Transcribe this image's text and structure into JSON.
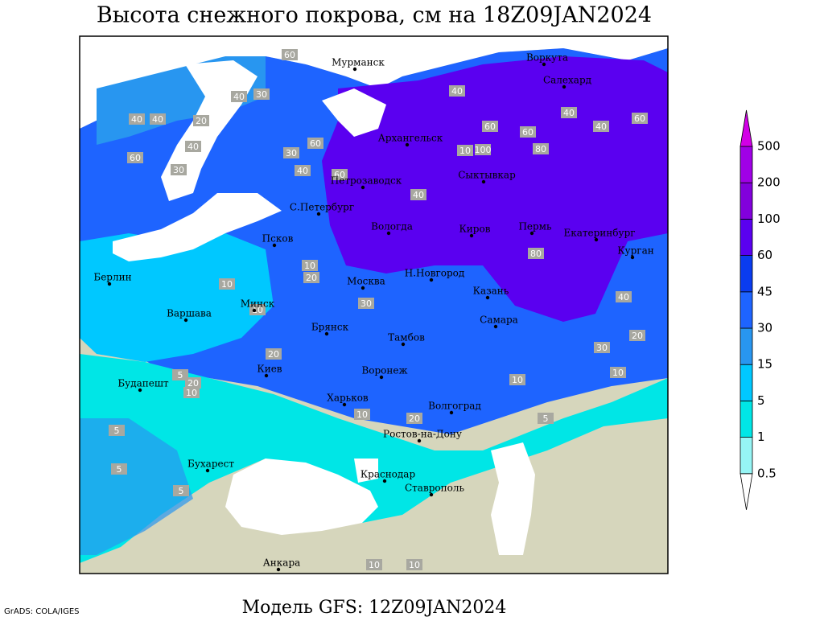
{
  "title": "Высота снежного покрова, см на 18Z09JAN2024",
  "footer": "Модель GFS: 12Z09JAN2024",
  "credit": "GrADS: COLA/IGES",
  "legend": {
    "levels": [
      0.5,
      1,
      5,
      15,
      30,
      45,
      60,
      100,
      200,
      500
    ],
    "colors": [
      "#ffffff",
      "#96f5f5",
      "#00e6e6",
      "#00c8ff",
      "#2896f0",
      "#1e64ff",
      "#0a3cf0",
      "#5a00f0",
      "#8200dc",
      "#a000e6",
      "#d200e6"
    ]
  },
  "cities": [
    "Мурманск",
    "Воркута",
    "Салехард",
    "Архангельск",
    "Сыктывкар",
    "Петрозаводск",
    "С.Петербург",
    "Вологда",
    "Киров",
    "Пермь",
    "Екатеринбург",
    "Курган",
    "Псков",
    "Берлин",
    "Н.Новгород",
    "Москва",
    "Казань",
    "Минск",
    "Варшава",
    "Самара",
    "Брянск",
    "Тамбов",
    "Воронеж",
    "Киев",
    "Будапешт",
    "Харьков",
    "Волгоград",
    "Ростов-на-Дону",
    "Бухарест",
    "Краснодар",
    "Ставрополь",
    "Анкара"
  ],
  "contour_labels": [
    60,
    40,
    30,
    30,
    40,
    40,
    20,
    60,
    40,
    30,
    60,
    40,
    100,
    10,
    60,
    80,
    40,
    60,
    40,
    40,
    60,
    60,
    80,
    40,
    20,
    10,
    10,
    20,
    10,
    30,
    20,
    5,
    10,
    10,
    20,
    5,
    5,
    5,
    10,
    5,
    10,
    40,
    30,
    20,
    10,
    10
  ]
}
